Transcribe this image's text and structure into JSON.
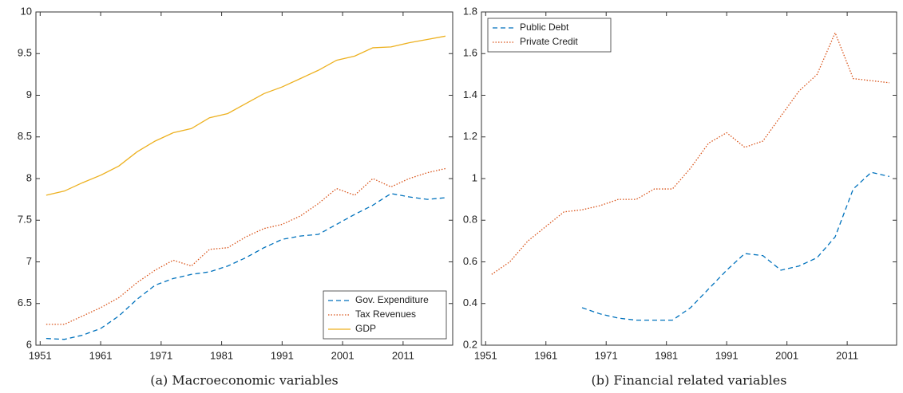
{
  "chart_data": [
    {
      "type": "line",
      "caption": "(a) Macroeconomic variables",
      "x": [
        1952,
        1955,
        1958,
        1961,
        1964,
        1967,
        1970,
        1973,
        1976,
        1979,
        1982,
        1985,
        1988,
        1991,
        1994,
        1997,
        2000,
        2003,
        2006,
        2009,
        2012,
        2015,
        2018
      ],
      "series": [
        {
          "name": "Gov. Expenditure",
          "color": "#0072BD",
          "dash": "dashed",
          "values": [
            6.08,
            6.07,
            6.12,
            6.2,
            6.35,
            6.55,
            6.72,
            6.8,
            6.85,
            6.88,
            6.95,
            7.05,
            7.17,
            7.27,
            7.31,
            7.33,
            7.45,
            7.57,
            7.68,
            7.82,
            7.78,
            7.75,
            7.77
          ]
        },
        {
          "name": "Tax Revenues",
          "color": "#D95319",
          "dash": "dotted",
          "values": [
            6.25,
            6.25,
            6.35,
            6.45,
            6.57,
            6.75,
            6.9,
            7.02,
            6.95,
            7.15,
            7.17,
            7.3,
            7.4,
            7.45,
            7.55,
            7.7,
            7.88,
            7.8,
            8.0,
            7.9,
            8.0,
            8.07,
            8.12
          ]
        },
        {
          "name": "GDP",
          "color": "#EDB120",
          "dash": "solid",
          "values": [
            7.8,
            7.85,
            7.95,
            8.04,
            8.15,
            8.32,
            8.45,
            8.55,
            8.6,
            8.73,
            8.78,
            8.9,
            9.02,
            9.1,
            9.2,
            9.3,
            9.42,
            9.47,
            9.57,
            9.58,
            9.63,
            9.67,
            9.71
          ]
        }
      ],
      "xlim": [
        1950.3,
        2019.2
      ],
      "xticks": [
        1951,
        1961,
        1971,
        1981,
        1991,
        2001,
        2011
      ],
      "ylim": [
        6,
        10
      ],
      "yticks": [
        6,
        6.5,
        7,
        7.5,
        8,
        8.5,
        9,
        9.5,
        10
      ],
      "legend": "lower-right"
    },
    {
      "type": "line",
      "caption": "(b) Financial related variables",
      "x": [
        1952,
        1955,
        1958,
        1961,
        1964,
        1967,
        1970,
        1973,
        1976,
        1979,
        1982,
        1985,
        1988,
        1991,
        1994,
        1997,
        2000,
        2003,
        2006,
        2009,
        2012,
        2015,
        2018
      ],
      "series": [
        {
          "name": "Public Debt",
          "color": "#0072BD",
          "dash": "dashed",
          "values": [
            null,
            null,
            null,
            null,
            null,
            0.38,
            0.35,
            0.33,
            0.32,
            0.32,
            0.32,
            0.38,
            0.47,
            0.56,
            0.64,
            0.63,
            0.56,
            0.58,
            0.62,
            0.72,
            0.95,
            1.03,
            1.01
          ]
        },
        {
          "name": "Private Credit",
          "color": "#D95319",
          "dash": "dotted",
          "values": [
            0.54,
            0.6,
            0.7,
            0.77,
            0.84,
            0.85,
            0.87,
            0.9,
            0.9,
            0.95,
            0.95,
            1.05,
            1.17,
            1.22,
            1.15,
            1.18,
            1.3,
            1.42,
            1.5,
            1.7,
            1.48,
            1.47,
            1.46
          ]
        }
      ],
      "xlim": [
        1950.3,
        2019.2
      ],
      "xticks": [
        1951,
        1961,
        1971,
        1981,
        1991,
        2001,
        2011
      ],
      "ylim": [
        0.2,
        1.8
      ],
      "yticks": [
        0.2,
        0.4,
        0.6,
        0.8,
        1,
        1.2,
        1.4,
        1.6,
        1.8
      ],
      "legend": "upper-left"
    }
  ]
}
